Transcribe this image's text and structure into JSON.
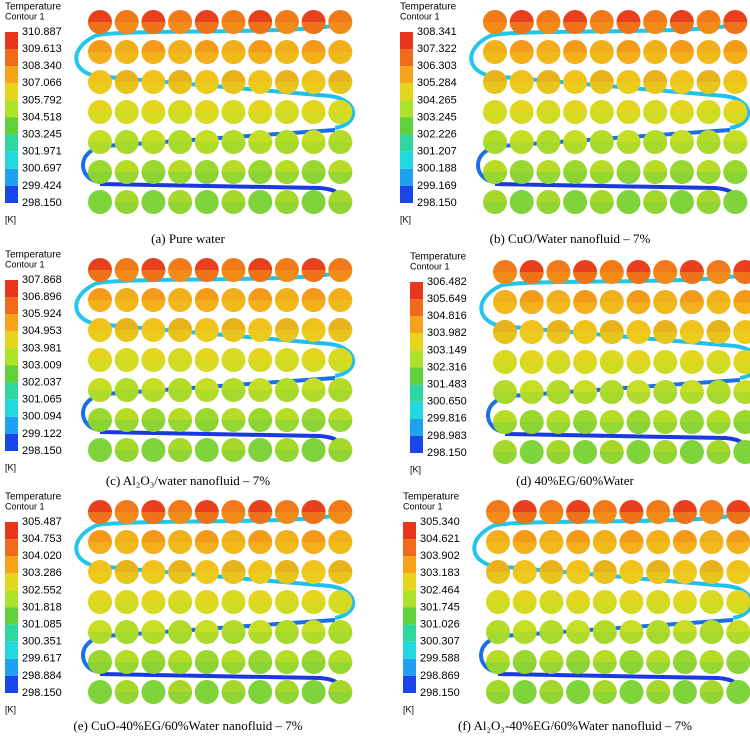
{
  "panels": [
    {
      "legend_title": "Temperature",
      "legend_subtitle": "Contour 1",
      "legend_labels": [
        "310.887",
        "309.613",
        "308.340",
        "307.066",
        "305.792",
        "304.518",
        "303.245",
        "301.971",
        "300.697",
        "299.424",
        "298.150"
      ],
      "unit": "[K]",
      "caption": "(a) Pure water"
    },
    {
      "legend_title": "Temperature",
      "legend_subtitle": "Contour 1",
      "legend_labels": [
        "308.341",
        "307.322",
        "306.303",
        "305.284",
        "304.265",
        "303.245",
        "302.226",
        "301.207",
        "300.188",
        "299.169",
        "298.150"
      ],
      "unit": "[K]",
      "caption": "(b) CuO/Water nanofluid – 7%"
    },
    {
      "legend_title": "Temperature",
      "legend_subtitle": "Contour 1",
      "legend_labels": [
        "307.868",
        "306.896",
        "305.924",
        "304.953",
        "303.981",
        "303.009",
        "302.037",
        "301.065",
        "300.094",
        "299.122",
        "298.150"
      ],
      "unit": "[K]",
      "caption": "(c) Al₂O₃/water nanofluid – 7%"
    },
    {
      "legend_title": "Temperature",
      "legend_subtitle": "Contour 1",
      "legend_labels": [
        "306.482",
        "305.649",
        "304.816",
        "303.982",
        "303.149",
        "302.316",
        "301.483",
        "300.650",
        "299.816",
        "298.983",
        "298.150"
      ],
      "unit": "[K]",
      "caption": "(d) 40%EG/60%Water"
    },
    {
      "legend_title": "Temperature",
      "legend_subtitle": "Contour 1",
      "legend_labels": [
        "305.487",
        "304.753",
        "304.020",
        "303.286",
        "302.552",
        "301.818",
        "301.085",
        "300.351",
        "299.617",
        "298.884",
        "298.150"
      ],
      "unit": "[K]",
      "caption": "(e) CuO-40%EG/60%Water nanofluid – 7%"
    },
    {
      "legend_title": "Temperature",
      "legend_subtitle": "Contour 1",
      "legend_labels": [
        "305.340",
        "304.621",
        "303.902",
        "303.183",
        "302.464",
        "301.745",
        "301.026",
        "300.307",
        "299.588",
        "298.869",
        "298.150"
      ],
      "unit": "[K]",
      "caption": "(f) Al₂O₃-40%EG/60%Water nanofluid – 7%"
    }
  ]
}
